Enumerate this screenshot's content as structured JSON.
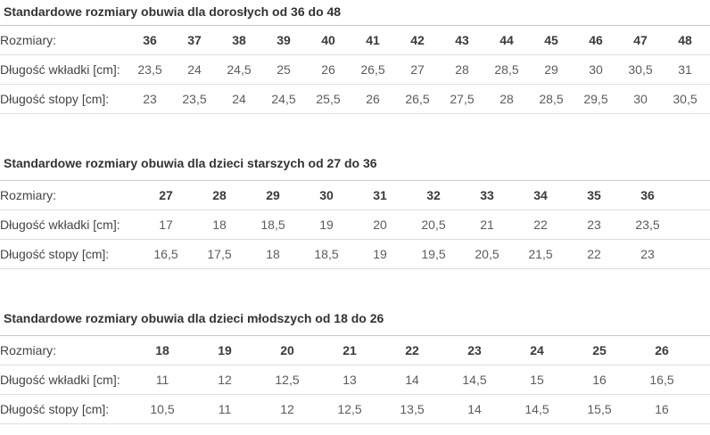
{
  "colors": {
    "background": "#ffffff",
    "title_text": "#333333",
    "label_text": "#444444",
    "header_text": "#3a3a3a",
    "value_text": "#5c5c5c",
    "table_top_border": "#c9c9c9",
    "row_border": "#dedede"
  },
  "tables": [
    {
      "title": "Standardowe rozmiary obuwia dla dorosłych od 36 do 48",
      "rows": [
        {
          "label": "Rozmiary:",
          "header": true,
          "values": [
            "36",
            "37",
            "38",
            "39",
            "40",
            "41",
            "42",
            "43",
            "44",
            "45",
            "46",
            "47",
            "48"
          ]
        },
        {
          "label": "Długość wkładki [cm]:",
          "header": false,
          "values": [
            "23,5",
            "24",
            "24,5",
            "25",
            "26",
            "26,5",
            "27",
            "28",
            "28,5",
            "29",
            "30",
            "30,5",
            "31"
          ]
        },
        {
          "label": "Długość stopy [cm]:",
          "header": false,
          "values": [
            "23",
            "23,5",
            "24",
            "24,5",
            "25,5",
            "26",
            "26,5",
            "27,5",
            "28",
            "28,5",
            "29,5",
            "30",
            "30,5"
          ]
        }
      ]
    },
    {
      "title": "Standardowe rozmiary obuwia dla dzieci starszych od 27 do 36",
      "rows": [
        {
          "label": "Rozmiary:",
          "header": true,
          "values": [
            "27",
            "28",
            "29",
            "30",
            "31",
            "32",
            "33",
            "34",
            "35",
            "36"
          ]
        },
        {
          "label": "Długość wkładki [cm]:",
          "header": false,
          "values": [
            "17",
            "18",
            "18,5",
            "19",
            "20",
            "20,5",
            "21",
            "22",
            "23",
            "23,5"
          ]
        },
        {
          "label": "Długość stopy [cm]:",
          "header": false,
          "values": [
            "16,5",
            "17,5",
            "18",
            "18,5",
            "19",
            "19,5",
            "20,5",
            "21,5",
            "22",
            "23"
          ]
        }
      ]
    },
    {
      "title": "Standardowe rozmiary obuwia dla dzieci młodszych od 18 do 26",
      "rows": [
        {
          "label": "Rozmiary:",
          "header": true,
          "values": [
            "18",
            "19",
            "20",
            "21",
            "22",
            "23",
            "24",
            "25",
            "26"
          ]
        },
        {
          "label": "Długość wkładki [cm]:",
          "header": false,
          "values": [
            "11",
            "12",
            "12,5",
            "13",
            "14",
            "14,5",
            "15",
            "16",
            "16,5"
          ]
        },
        {
          "label": "Długość stopy [cm]:",
          "header": false,
          "values": [
            "10,5",
            "11",
            "12",
            "12,5",
            "13,5",
            "14",
            "14,5",
            "15,5",
            "16"
          ]
        }
      ]
    }
  ]
}
